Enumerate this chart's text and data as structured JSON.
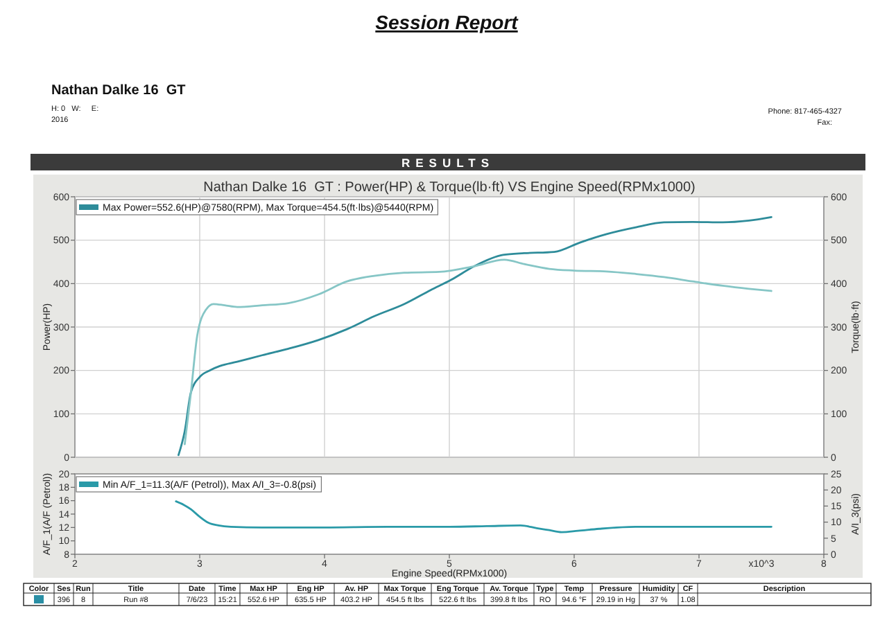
{
  "chart_data": [
    {
      "type": "other",
      "title": "Session Report",
      "subtitle": "RESULTS",
      "annotations": [
        "Nathan Dalke 16  GT",
        "H: 0   W:     E:",
        "2016",
        "Phone: 817-465-4327",
        "Fax:"
      ]
    },
    {
      "type": "line",
      "title": "Nathan Dalke 16  GT : Power(HP) & Torque(lb·ft) VS Engine Speed(RPMx1000)",
      "ylabel": "Power(HP)",
      "y2label": "Torque(lb·ft)",
      "xlim": [
        2,
        8
      ],
      "xticks": [
        3,
        4,
        5,
        6,
        7
      ],
      "ylim": [
        0,
        600
      ],
      "yticks": [
        0,
        100,
        200,
        300,
        400,
        500,
        600
      ],
      "y2lim": [
        0,
        600
      ],
      "y2ticks": [
        0,
        100,
        200,
        300,
        400,
        500,
        600
      ],
      "tick_labels": "y",
      "grid": true,
      "legend": "top left",
      "series": [
        {
          "name": "Max Power=552.6(HP)@7580(RPM), Max Torque=454.5(ft·lbs)@5440(RPM)",
          "color": "#2e8c9a",
          "x": [
            2.83,
            2.88,
            2.93,
            3.0,
            3.08,
            3.16,
            3.3,
            3.5,
            3.71,
            3.95,
            4.18,
            4.4,
            4.64,
            4.85,
            5.01,
            5.2,
            5.43,
            5.6,
            5.84,
            6.05,
            6.26,
            6.5,
            6.72,
            6.95,
            7.19,
            7.4,
            7.58
          ],
          "values": [
            5,
            60,
            150,
            185,
            200,
            210,
            220,
            235,
            250,
            270,
            295,
            325,
            353,
            385,
            408,
            440,
            466,
            470,
            473,
            495,
            514,
            530,
            541,
            542,
            541,
            545,
            553
          ]
        },
        {
          "color": "#86c6c6",
          "x": [
            2.88,
            2.93,
            2.98,
            3.05,
            3.11,
            3.2,
            3.3,
            3.5,
            3.71,
            3.95,
            4.18,
            4.4,
            4.64,
            4.92,
            5.2,
            5.44,
            5.6,
            5.8,
            6.0,
            6.26,
            6.5,
            6.72,
            6.95,
            7.19,
            7.4,
            7.58
          ],
          "values": [
            30,
            150,
            280,
            340,
            353,
            350,
            346,
            350,
            355,
            375,
            405,
            418,
            425,
            427,
            440,
            455,
            445,
            434,
            430,
            428,
            422,
            415,
            405,
            395,
            388,
            383
          ]
        }
      ]
    },
    {
      "type": "line",
      "xlabel": "Engine Speed(RPMx1000)",
      "ylabel": "A/F_1(A/F (Petrol))",
      "y2label": "A/I_3(psi)",
      "xlim": [
        2,
        8
      ],
      "xticks": [
        2,
        3,
        4,
        5,
        6,
        7,
        8
      ],
      "ylim": [
        8,
        20
      ],
      "yticks": [
        8,
        10,
        12,
        14,
        16,
        18,
        20
      ],
      "y2lim": [
        0,
        25
      ],
      "y2ticks": [
        0,
        5,
        10,
        15,
        20,
        25
      ],
      "legend": "top left",
      "annotations": [
        "x10^3"
      ],
      "series": [
        {
          "name": "Min A/F_1=11.3(A/F (Petrol)), Max A/I_3=-0.8(psi)",
          "color": "#2a9aa8",
          "x": [
            2.81,
            2.87,
            2.93,
            3.0,
            3.07,
            3.15,
            3.25,
            3.5,
            4.0,
            4.5,
            5.0,
            5.3,
            5.57,
            5.7,
            5.8,
            5.9,
            6.03,
            6.2,
            6.49,
            6.8,
            7.2,
            7.58
          ],
          "values": [
            15.9,
            15.4,
            14.7,
            13.6,
            12.7,
            12.3,
            12.1,
            12.0,
            12.0,
            12.1,
            12.1,
            12.2,
            12.3,
            11.9,
            11.6,
            11.3,
            11.5,
            11.8,
            12.1,
            12.1,
            12.1,
            12.1
          ]
        }
      ]
    },
    {
      "type": "other",
      "categories": [
        "Color",
        "Ses",
        "Run",
        "Title",
        "Date",
        "Time",
        "Max HP",
        "Eng HP",
        "Av. HP",
        "Max Torque",
        "Eng Torque",
        "Av. Torque",
        "Type",
        "Temp",
        "Pressure",
        "Humidity",
        "CF",
        "Description"
      ],
      "cell_labels": [
        [
          null,
          "396",
          "8",
          "Run #8",
          "7/6/23",
          "15:21",
          "552.6 HP",
          "635.5 HP",
          "403.2 HP",
          "454.5 ft lbs",
          "522.6 ft lbs",
          "399.8 ft lbs",
          "RO",
          "94.6 °F",
          "29.19 in Hg",
          "37 %",
          "1.08",
          null
        ]
      ],
      "color": "#2a8fa5"
    }
  ]
}
